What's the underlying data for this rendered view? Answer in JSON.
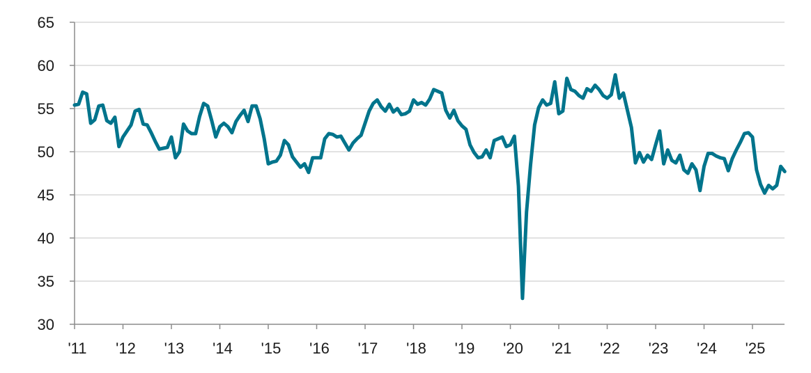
{
  "chart_data": {
    "type": "line",
    "title": "",
    "xlabel": "",
    "ylabel": "",
    "ylim": [
      30,
      65
    ],
    "yticks": [
      30,
      35,
      40,
      45,
      50,
      55,
      60,
      65
    ],
    "xtick_labels": [
      "'11",
      "'12",
      "'13",
      "'14",
      "'15",
      "'16",
      "'17",
      "'18",
      "'19",
      "'20",
      "'21",
      "'22",
      "'23",
      "'24",
      "'25"
    ],
    "x_start": "2011-01",
    "x_frequency": "monthly",
    "grid": "horizontal",
    "legend": "none",
    "line_color": "#00748C",
    "series": [
      {
        "values": [
          55.4,
          55.5,
          56.9,
          56.7,
          53.3,
          53.7,
          55.3,
          55.4,
          53.6,
          53.3,
          54.0,
          50.6,
          51.7,
          52.4,
          53.1,
          54.7,
          54.9,
          53.2,
          53.1,
          52.2,
          51.2,
          50.3,
          50.4,
          50.5,
          51.7,
          49.3,
          50.0,
          53.2,
          52.4,
          52.1,
          52.1,
          54.1,
          55.6,
          55.3,
          53.6,
          51.7,
          52.9,
          53.3,
          52.9,
          52.2,
          53.5,
          54.2,
          54.8,
          53.5,
          55.3,
          55.3,
          53.8,
          51.5,
          48.6,
          48.8,
          48.9,
          49.6,
          51.3,
          50.8,
          49.4,
          48.8,
          48.2,
          48.6,
          47.6,
          49.3,
          49.3,
          49.3,
          51.5,
          52.1,
          52.0,
          51.7,
          51.8,
          51.0,
          50.2,
          51.0,
          51.5,
          51.9,
          53.3,
          54.7,
          55.6,
          56.0,
          55.2,
          54.7,
          55.5,
          54.6,
          55.0,
          54.3,
          54.4,
          54.7,
          56.0,
          55.5,
          55.7,
          55.4,
          56.1,
          57.2,
          57.0,
          56.8,
          54.8,
          53.9,
          54.8,
          53.6,
          53.0,
          52.6,
          50.8,
          49.9,
          49.3,
          49.4,
          50.2,
          49.3,
          51.3,
          51.5,
          51.7,
          50.6,
          50.8,
          51.8,
          46.0,
          33.0,
          43.0,
          48.5,
          53.1,
          55.1,
          56.0,
          55.4,
          55.6,
          58.1,
          54.4,
          54.7,
          58.5,
          57.2,
          57.0,
          56.5,
          56.2,
          57.3,
          57.0,
          57.7,
          57.2,
          56.5,
          56.2,
          56.6,
          58.9,
          56.2,
          56.8,
          54.8,
          52.8,
          48.7,
          49.9,
          48.8,
          49.6,
          49.1,
          50.8,
          52.4,
          48.6,
          50.2,
          49.0,
          48.7,
          49.6,
          47.9,
          47.5,
          48.6,
          47.9,
          45.5,
          48.3,
          49.8,
          49.8,
          49.5,
          49.3,
          49.2,
          47.8,
          49.2,
          50.2,
          51.1,
          52.1,
          52.2,
          51.7,
          47.9,
          46.2,
          45.2,
          46.1,
          45.7,
          46.1,
          48.3,
          47.7
        ]
      }
    ]
  }
}
